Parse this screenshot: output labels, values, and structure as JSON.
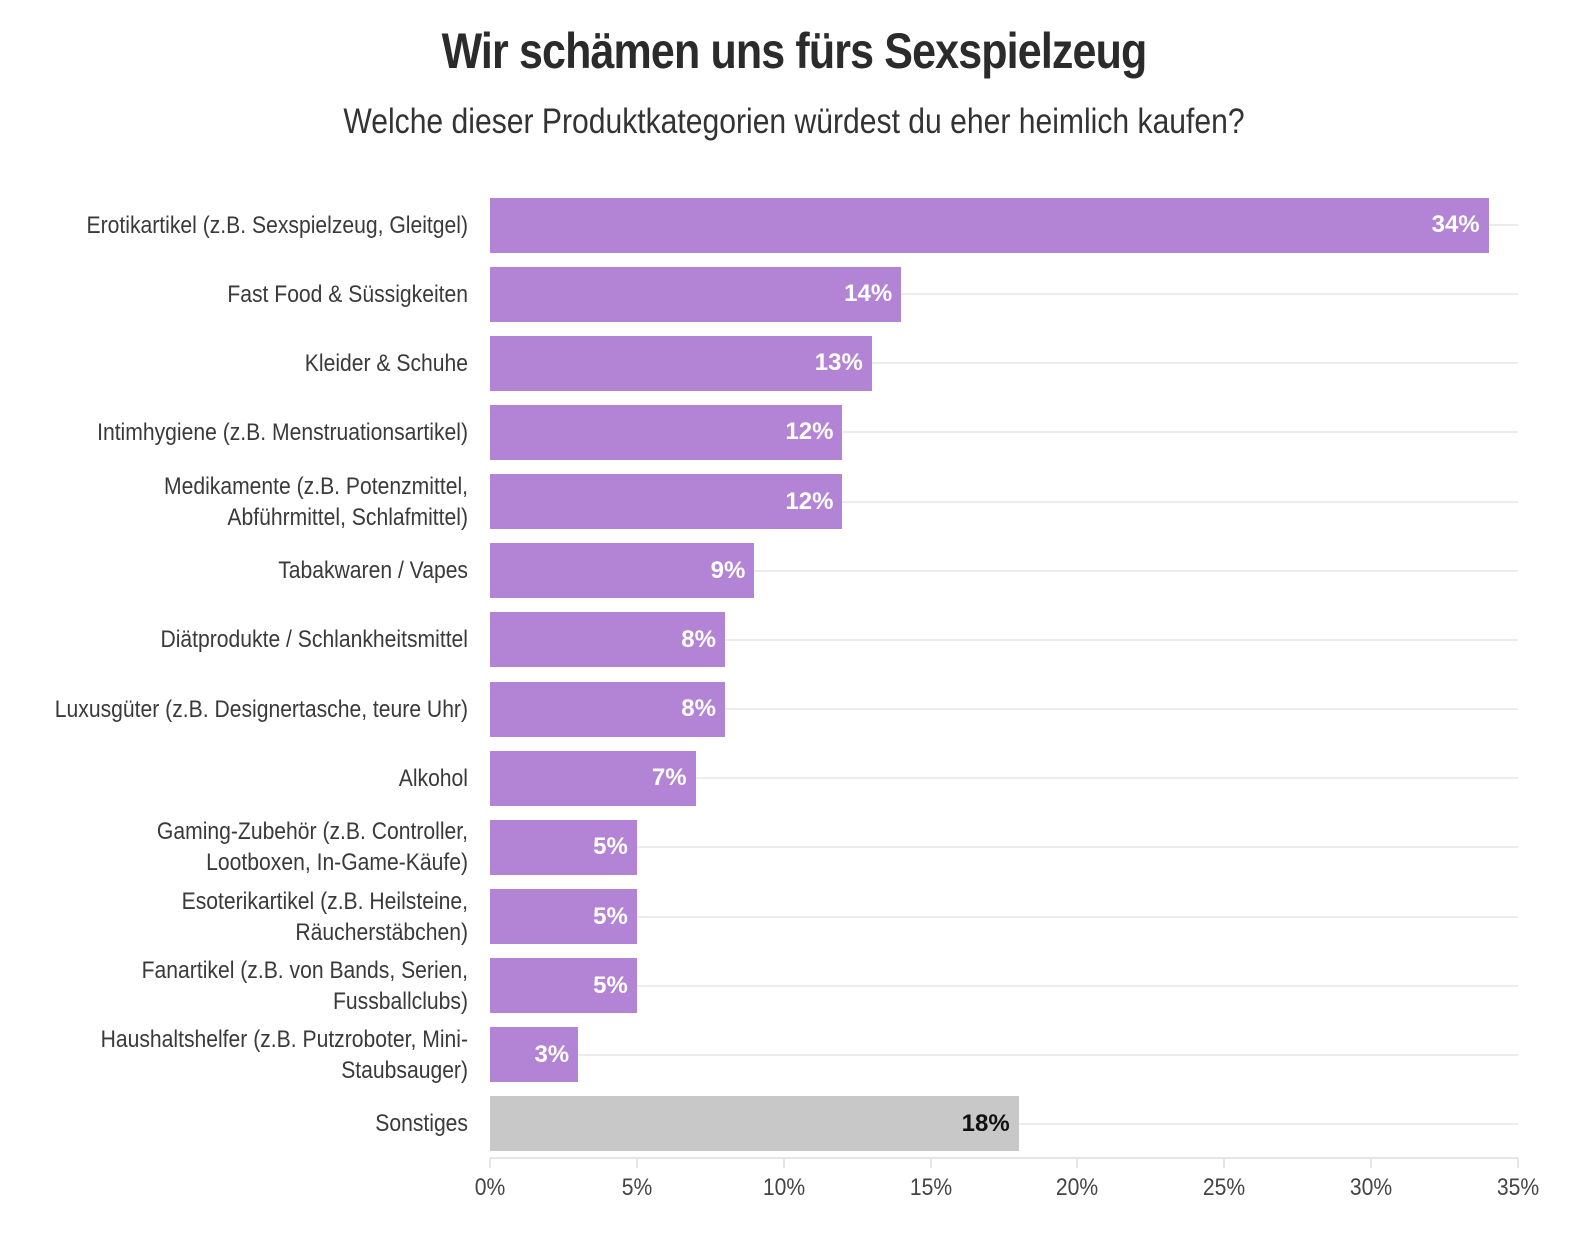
{
  "chart_data": {
    "type": "bar",
    "orientation": "horizontal",
    "title": "Wir schämen uns fürs Sexspielzeug",
    "subtitle": "Welche dieser Produktkategorien würdest du eher heimlich kaufen?",
    "xlabel": "",
    "ylabel": "",
    "xlim": [
      0,
      35
    ],
    "x_ticks": [
      "0%",
      "5%",
      "10%",
      "15%",
      "20%",
      "25%",
      "30%",
      "35%"
    ],
    "grid": "horizontal lines at categories",
    "colors": {
      "default": "#b384d6",
      "other": "#c8c8c8",
      "label_on_default": "#ffffff",
      "label_on_other": "#111111"
    },
    "categories": [
      "Erotikartikel (z.B. Sexspielzeug, Gleitgel)",
      "Fast Food & Süssigkeiten",
      "Kleider & Schuhe",
      "Intimhygiene (z.B. Menstruationsartikel)",
      "Medikamente (z.B. Potenzmittel, Abführmittel, Schlafmittel)",
      "Tabakwaren / Vapes",
      "Diätprodukte / Schlankheitsmittel",
      "Luxusgüter (z.B. Designertasche, teure Uhr)",
      "Alkohol",
      "Gaming-Zubehör (z.B. Controller, Lootboxen, In-Game-Käufe)",
      "Esoterikartikel (z.B. Heilsteine, Räucherstäbchen)",
      "Fanartikel (z.B. von Bands, Serien, Fussballclubs)",
      "Haushaltshelfer (z.B. Putzroboter, Mini-Staubsauger)",
      "Sonstiges"
    ],
    "values": [
      34,
      14,
      13,
      12,
      12,
      9,
      8,
      8,
      7,
      5,
      5,
      5,
      3,
      18
    ],
    "value_labels": [
      "34%",
      "14%",
      "13%",
      "12%",
      "12%",
      "9%",
      "8%",
      "8%",
      "7%",
      "5%",
      "5%",
      "5%",
      "3%",
      "18%"
    ],
    "highlight_other": [
      false,
      false,
      false,
      false,
      false,
      false,
      false,
      false,
      false,
      false,
      false,
      false,
      false,
      true
    ]
  }
}
